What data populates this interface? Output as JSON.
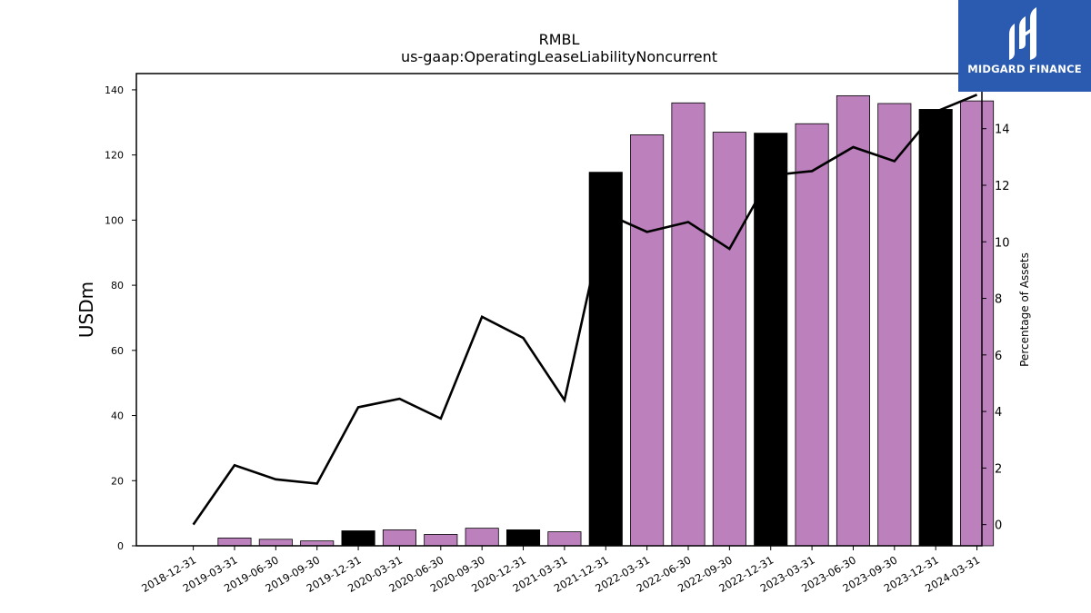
{
  "chart_data": {
    "type": "bar",
    "title": "RMBL",
    "subtitle": "us-gaap:OperatingLeaseLiabilityNoncurrent",
    "ylabel": "USDm",
    "y2label": "Percentage of Assets",
    "ylim": [
      0,
      145
    ],
    "y2lim": [
      -0.75,
      15.95
    ],
    "yticks": [
      0,
      20,
      40,
      60,
      80,
      100,
      120,
      140
    ],
    "y2ticks": [
      0,
      2,
      4,
      6,
      8,
      10,
      12,
      14
    ],
    "categories": [
      "2018-12-31",
      "2019-03-31",
      "2019-06-30",
      "2019-09-30",
      "2019-12-31",
      "2020-03-31",
      "2020-06-30",
      "2020-09-30",
      "2020-12-31",
      "2021-03-31",
      "2021-12-31",
      "2022-03-31",
      "2022-06-30",
      "2022-09-30",
      "2022-12-31",
      "2023-03-31",
      "2023-06-30",
      "2023-09-30",
      "2023-12-31",
      "2024-03-31"
    ],
    "series": [
      {
        "kind": "bar",
        "values": [
          0,
          2.4,
          2.0,
          1.5,
          4.6,
          4.9,
          3.5,
          5.4,
          4.9,
          4.3,
          114.7,
          126.2,
          136.0,
          127.0,
          126.7,
          129.6,
          138.2,
          135.8,
          134.0,
          136.6
        ],
        "annual": [
          false,
          false,
          false,
          false,
          true,
          false,
          false,
          false,
          true,
          false,
          true,
          false,
          false,
          false,
          true,
          false,
          false,
          false,
          true,
          false
        ]
      },
      {
        "kind": "line",
        "axis": "y2",
        "values": [
          0.0,
          2.1,
          1.6,
          1.45,
          4.15,
          4.45,
          3.75,
          7.35,
          6.6,
          4.4,
          11.0,
          10.35,
          10.7,
          9.75,
          12.35,
          12.5,
          13.35,
          12.85,
          14.6,
          15.2
        ]
      }
    ],
    "colors": {
      "quarter_bar": "#bc80bd",
      "annual_bar": "#000000",
      "line": "#000000"
    },
    "grid": false,
    "legend": "none"
  },
  "logo": {
    "text": "MIDGARD FINANCE",
    "bg": "#2b5bb0"
  }
}
